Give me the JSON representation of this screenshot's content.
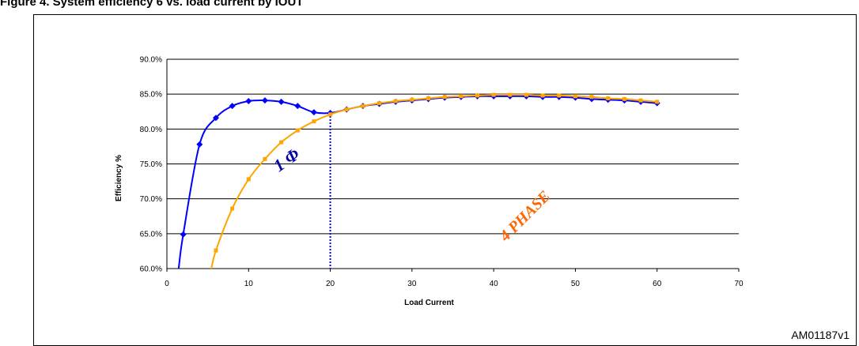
{
  "figure": {
    "title": "Figure 4.   System efficiency 6 vs. load current by IOUT",
    "id_label": "AM01187v1"
  },
  "chart_data": {
    "type": "line",
    "xlabel": "Load Current",
    "ylabel": "Efficiency %",
    "xlim": [
      0,
      70
    ],
    "ylim": [
      60,
      90
    ],
    "x_ticks": [
      0,
      10,
      20,
      30,
      40,
      50,
      60,
      70
    ],
    "y_ticks": [
      60,
      65,
      70,
      75,
      80,
      85,
      90
    ],
    "y_tick_labels": [
      "60.0%",
      "65.0%",
      "70.0%",
      "75.0%",
      "80.0%",
      "85.0%",
      "90.0%"
    ],
    "grid": "horizontal",
    "legend": "none",
    "series": [
      {
        "name": "1 Φ",
        "color": "#0000ff",
        "marker": "diamond",
        "x": [
          2,
          4,
          6,
          8,
          10,
          12,
          14,
          16,
          18,
          20,
          22,
          24,
          26,
          28,
          30,
          32,
          34,
          36,
          38,
          40,
          42,
          44,
          46,
          48,
          50,
          52,
          54,
          56,
          58,
          60
        ],
        "values": [
          64.9,
          77.8,
          81.6,
          83.3,
          84.0,
          84.1,
          83.9,
          83.3,
          82.4,
          82.3,
          82.8,
          83.3,
          83.6,
          83.9,
          84.1,
          84.3,
          84.5,
          84.6,
          84.7,
          84.7,
          84.7,
          84.7,
          84.6,
          84.6,
          84.5,
          84.3,
          84.2,
          84.1,
          83.9,
          83.7
        ]
      },
      {
        "name": "4 PHASE",
        "color": "#ffa500",
        "marker": "square",
        "x": [
          6,
          8,
          10,
          12,
          14,
          16,
          18,
          20,
          22,
          24,
          26,
          28,
          30,
          32,
          34,
          36,
          38,
          40,
          42,
          44,
          46,
          48,
          50,
          52,
          54,
          56,
          58,
          60
        ],
        "values": [
          62.6,
          68.6,
          72.8,
          75.7,
          78.1,
          79.8,
          81.1,
          82.1,
          82.8,
          83.3,
          83.7,
          84.0,
          84.2,
          84.4,
          84.6,
          84.7,
          84.8,
          84.9,
          84.9,
          84.9,
          84.8,
          84.8,
          84.7,
          84.6,
          84.4,
          84.3,
          84.1,
          83.9
        ]
      }
    ],
    "reference_line": {
      "x": 20,
      "style": "dotted",
      "color": "#0000ff"
    },
    "annotations": [
      {
        "text": "1 Φ",
        "color": "#0000aa"
      },
      {
        "text": "4 PHASE",
        "color": "#ff6600"
      }
    ]
  }
}
